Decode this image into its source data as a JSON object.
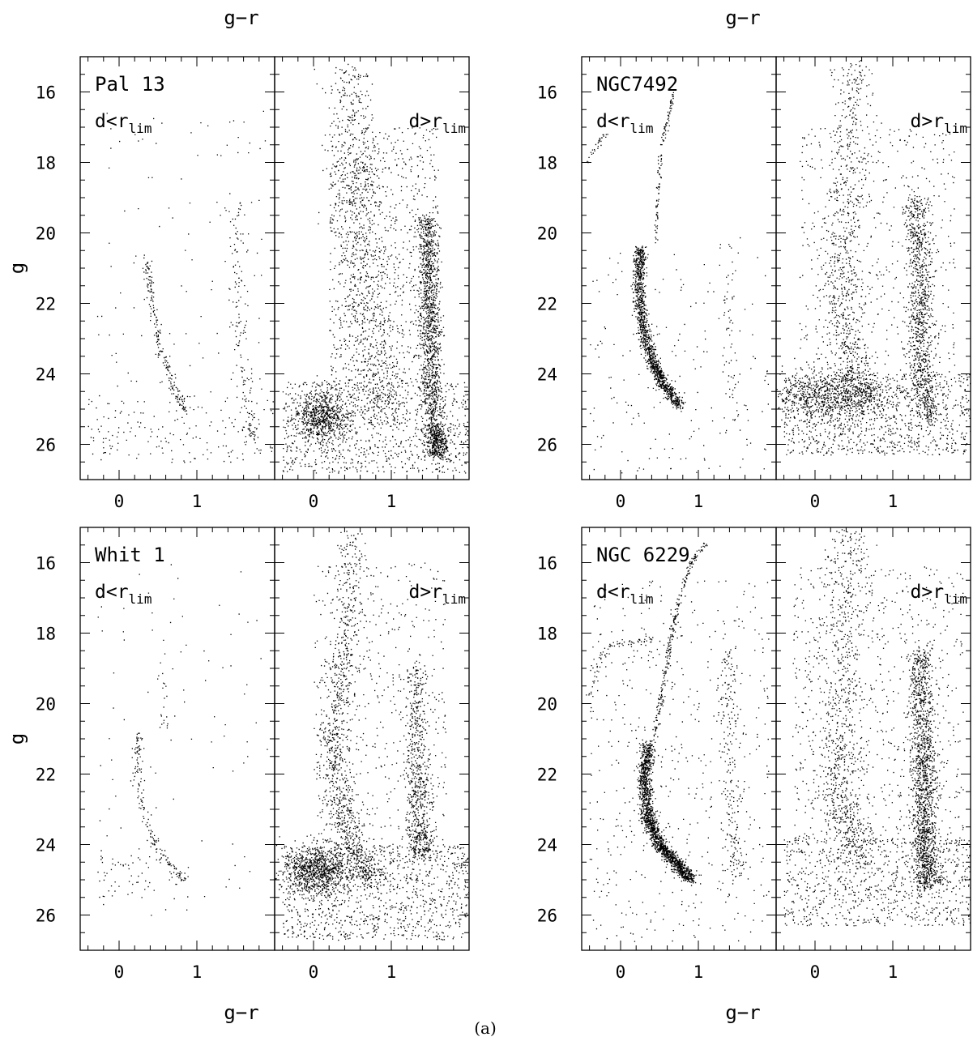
{
  "figure": {
    "caption": "(a)"
  },
  "chart_data": [
    {
      "type": "scatter",
      "cluster": "Pal 13",
      "xlabel": "g−r",
      "ylabel": "g",
      "xlim": [
        -0.5,
        2.0
      ],
      "ylim": [
        27,
        15
      ],
      "xticks": [
        "0",
        "1"
      ],
      "yticks": [
        "16",
        "18",
        "20",
        "22",
        "24",
        "26"
      ],
      "subpanels": [
        {
          "label_main": "d<r",
          "label_sub": "lim",
          "features": [
            {
              "kind": "curve",
              "pts": [
                [
                  0.35,
                  20.8
                ],
                [
                  0.38,
                  21.4
                ],
                [
                  0.45,
                  22.4
                ],
                [
                  0.55,
                  23.4
                ],
                [
                  0.7,
                  24.4
                ],
                [
                  0.85,
                  25.0
                ]
              ],
              "n": 200,
              "spread": 0.03
            },
            {
              "kind": "curve",
              "pts": [
                [
                  1.5,
                  19.2
                ],
                [
                  1.52,
                  21.0
                ],
                [
                  1.55,
                  23.0
                ],
                [
                  1.65,
                  25.0
                ],
                [
                  1.7,
                  25.8
                ]
              ],
              "n": 160,
              "spread": 0.05
            },
            {
              "kind": "blob",
              "x": [
                -0.4,
                2.0
              ],
              "y": [
                24.6,
                26.5
              ],
              "n": 180
            },
            {
              "kind": "blob",
              "x": [
                -0.3,
                1.9
              ],
              "y": [
                16.5,
                24.5
              ],
              "n": 110
            }
          ]
        },
        {
          "label_main": "d>r",
          "label_sub": "lim",
          "features": [
            {
              "kind": "curve",
              "pts": [
                [
                  0.45,
                  15.3
                ],
                [
                  0.5,
                  18.0
                ],
                [
                  0.6,
                  20.5
                ],
                [
                  0.7,
                  23.0
                ],
                [
                  0.9,
                  25.2
                ]
              ],
              "n": 900,
              "spread": 0.16
            },
            {
              "kind": "curve",
              "pts": [
                [
                  1.45,
                  19.5
                ],
                [
                  1.48,
                  21.5
                ],
                [
                  1.5,
                  23.5
                ],
                [
                  1.55,
                  25.5
                ],
                [
                  1.6,
                  26.3
                ]
              ],
              "n": 1600,
              "spread": 0.07
            },
            {
              "kind": "gauss",
              "cx": 0.1,
              "cy": 25.2,
              "sx": 0.18,
              "sy": 0.35,
              "n": 700
            },
            {
              "kind": "blob",
              "x": [
                -0.4,
                2.0
              ],
              "y": [
                24.2,
                26.8
              ],
              "n": 900
            },
            {
              "kind": "blob",
              "x": [
                0.2,
                1.6
              ],
              "y": [
                17.0,
                24.5
              ],
              "n": 900
            }
          ]
        }
      ]
    },
    {
      "type": "scatter",
      "cluster": "NGC7492",
      "xlabel": "g−r",
      "ylabel": "g",
      "xlim": [
        -0.5,
        2.0
      ],
      "ylim": [
        27,
        15
      ],
      "xticks": [
        "0",
        "1"
      ],
      "yticks": [
        "16",
        "18",
        "20",
        "22",
        "24",
        "26"
      ],
      "subpanels": [
        {
          "label_main": "d<r",
          "label_sub": "lim",
          "features": [
            {
              "kind": "curve",
              "pts": [
                [
                  0.25,
                  20.4
                ],
                [
                  0.23,
                  21.5
                ],
                [
                  0.27,
                  22.6
                ],
                [
                  0.4,
                  23.6
                ],
                [
                  0.55,
                  24.3
                ],
                [
                  0.75,
                  24.9
                ]
              ],
              "n": 1300,
              "spread": 0.04
            },
            {
              "kind": "curve",
              "pts": [
                [
                  0.45,
                  20.3
                ],
                [
                  0.47,
                  19.0
                ],
                [
                  0.52,
                  17.5
                ],
                [
                  0.6,
                  16.8
                ],
                [
                  0.68,
                  16.0
                ]
              ],
              "n": 120,
              "spread": 0.015
            },
            {
              "kind": "curve",
              "pts": [
                [
                  -0.45,
                  18.0
                ],
                [
                  -0.35,
                  17.6
                ],
                [
                  -0.2,
                  17.2
                ]
              ],
              "n": 30,
              "spread": 0.02
            },
            {
              "kind": "curve",
              "pts": [
                [
                  1.35,
                  20.0
                ],
                [
                  1.38,
                  22.0
                ],
                [
                  1.42,
                  24.0
                ],
                [
                  1.48,
                  25.5
                ]
              ],
              "n": 60,
              "spread": 0.06
            },
            {
              "kind": "blob",
              "x": [
                -0.4,
                1.9
              ],
              "y": [
                20.5,
                26.8
              ],
              "n": 180
            }
          ]
        },
        {
          "label_main": "d>r",
          "label_sub": "lim",
          "features": [
            {
              "kind": "curve",
              "pts": [
                [
                  0.5,
                  15.2
                ],
                [
                  0.45,
                  18.0
                ],
                [
                  0.3,
                  20.8
                ],
                [
                  0.35,
                  22.5
                ],
                [
                  0.5,
                  24.0
                ],
                [
                  0.7,
                  25.0
                ]
              ],
              "n": 900,
              "spread": 0.13
            },
            {
              "kind": "curve",
              "pts": [
                [
                  1.3,
                  19.0
                ],
                [
                  1.35,
                  21.5
                ],
                [
                  1.35,
                  23.5
                ],
                [
                  1.45,
                  25.3
                ]
              ],
              "n": 1000,
              "spread": 0.08
            },
            {
              "kind": "gauss",
              "cx": 0.1,
              "cy": 24.6,
              "sx": 0.35,
              "sy": 0.35,
              "n": 700
            },
            {
              "kind": "blob",
              "x": [
                -0.4,
                2.0
              ],
              "y": [
                24.0,
                26.3
              ],
              "n": 1000
            },
            {
              "kind": "blob",
              "x": [
                -0.2,
                1.8
              ],
              "y": [
                17.0,
                24.0
              ],
              "n": 500
            }
          ]
        }
      ]
    },
    {
      "type": "scatter",
      "cluster": "Whit 1",
      "xlabel": "g−r",
      "ylabel": "g",
      "xlim": [
        -0.5,
        2.0
      ],
      "ylim": [
        27,
        15
      ],
      "xticks": [
        "0",
        "1"
      ],
      "yticks": [
        "16",
        "18",
        "20",
        "22",
        "24",
        "26"
      ],
      "subpanels": [
        {
          "label_main": "d<r",
          "label_sub": "lim",
          "features": [
            {
              "kind": "curve",
              "pts": [
                [
                  0.25,
                  20.8
                ],
                [
                  0.22,
                  21.8
                ],
                [
                  0.3,
                  23.0
                ],
                [
                  0.45,
                  24.0
                ],
                [
                  0.65,
                  24.6
                ],
                [
                  0.85,
                  25.0
                ]
              ],
              "n": 170,
              "spread": 0.03
            },
            {
              "kind": "curve",
              "pts": [
                [
                  0.55,
                  18.5
                ],
                [
                  0.6,
                  20.0
                ],
                [
                  0.55,
                  20.8
                ]
              ],
              "n": 20,
              "spread": 0.03
            },
            {
              "kind": "blob",
              "x": [
                -0.3,
                1.9
              ],
              "y": [
                16.0,
                26.0
              ],
              "n": 90
            },
            {
              "kind": "blob",
              "x": [
                -0.3,
                0.9
              ],
              "y": [
                24.3,
                25.5
              ],
              "n": 60
            }
          ]
        },
        {
          "label_main": "d>r",
          "label_sub": "lim",
          "features": [
            {
              "kind": "curve",
              "pts": [
                [
                  0.5,
                  15.2
                ],
                [
                  0.4,
                  18.5
                ],
                [
                  0.25,
                  20.8
                ],
                [
                  0.3,
                  22.5
                ],
                [
                  0.5,
                  24.0
                ],
                [
                  0.75,
                  25.0
                ]
              ],
              "n": 1000,
              "spread": 0.1
            },
            {
              "kind": "curve",
              "pts": [
                [
                  1.3,
                  19.0
                ],
                [
                  1.33,
                  21.5
                ],
                [
                  1.35,
                  23.3
                ],
                [
                  1.4,
                  24.3
                ]
              ],
              "n": 700,
              "spread": 0.08
            },
            {
              "kind": "gauss",
              "cx": 0.05,
              "cy": 24.7,
              "sx": 0.22,
              "sy": 0.35,
              "n": 900
            },
            {
              "kind": "blob",
              "x": [
                -0.4,
                2.0
              ],
              "y": [
                24.0,
                26.7
              ],
              "n": 1100
            },
            {
              "kind": "blob",
              "x": [
                0.0,
                1.7
              ],
              "y": [
                16.0,
                24.0
              ],
              "n": 500
            }
          ]
        }
      ]
    },
    {
      "type": "scatter",
      "cluster": "NGC 6229",
      "xlabel": "g−r",
      "ylabel": "g",
      "xlim": [
        -0.5,
        2.0
      ],
      "ylim": [
        27,
        15
      ],
      "xticks": [
        "0",
        "1"
      ],
      "yticks": [
        "16",
        "18",
        "20",
        "22",
        "24",
        "26"
      ],
      "subpanels": [
        {
          "label_main": "d<r",
          "label_sub": "lim",
          "features": [
            {
              "kind": "curve",
              "pts": [
                [
                  0.35,
                  21.1
                ],
                [
                  0.3,
                  22.2
                ],
                [
                  0.35,
                  23.3
                ],
                [
                  0.5,
                  24.0
                ],
                [
                  0.7,
                  24.5
                ],
                [
                  0.9,
                  25.0
                ]
              ],
              "n": 1700,
              "spread": 0.045
            },
            {
              "kind": "curve",
              "pts": [
                [
                  0.42,
                  21.0
                ],
                [
                  0.5,
                  20.0
                ],
                [
                  0.58,
                  19.0
                ],
                [
                  0.65,
                  18.0
                ],
                [
                  0.75,
                  17.0
                ],
                [
                  0.9,
                  16.0
                ],
                [
                  1.1,
                  15.4
                ]
              ],
              "n": 260,
              "spread": 0.018
            },
            {
              "kind": "curve",
              "pts": [
                [
                  -0.4,
                  19.8
                ],
                [
                  -0.3,
                  18.8
                ],
                [
                  -0.1,
                  18.3
                ],
                [
                  0.2,
                  18.2
                ],
                [
                  0.4,
                  18.2
                ]
              ],
              "n": 80,
              "spread": 0.03
            },
            {
              "kind": "curve",
              "pts": [
                [
                  1.35,
                  18.5
                ],
                [
                  1.4,
                  21.0
                ],
                [
                  1.45,
                  23.5
                ],
                [
                  1.5,
                  25.0
                ]
              ],
              "n": 220,
              "spread": 0.07
            },
            {
              "kind": "blob",
              "x": [
                -0.4,
                1.9
              ],
              "y": [
                16.5,
                26.8
              ],
              "n": 500
            }
          ]
        },
        {
          "label_main": "d>r",
          "label_sub": "lim",
          "features": [
            {
              "kind": "curve",
              "pts": [
                [
                  0.45,
                  15.0
                ],
                [
                  0.35,
                  18.0
                ],
                [
                  0.3,
                  21.0
                ],
                [
                  0.35,
                  23.0
                ],
                [
                  0.55,
                  24.5
                ]
              ],
              "n": 800,
              "spread": 0.14
            },
            {
              "kind": "curve",
              "pts": [
                [
                  1.35,
                  18.5
                ],
                [
                  1.38,
                  21.5
                ],
                [
                  1.4,
                  23.5
                ],
                [
                  1.45,
                  25.2
                ]
              ],
              "n": 1500,
              "spread": 0.08
            },
            {
              "kind": "blob",
              "x": [
                -0.4,
                2.0
              ],
              "y": [
                23.8,
                26.3
              ],
              "n": 900
            },
            {
              "kind": "blob",
              "x": [
                -0.3,
                1.9
              ],
              "y": [
                16.0,
                24.0
              ],
              "n": 800
            }
          ]
        }
      ]
    }
  ]
}
